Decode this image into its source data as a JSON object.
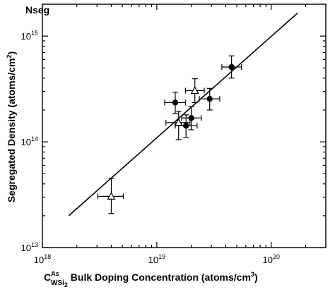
{
  "chart_data": {
    "type": "scatter",
    "title": "",
    "corner_label": "Nseg",
    "xlabel": {
      "symbol": "C",
      "sup": "As",
      "sub": "WSi",
      "sub_sub": "2",
      "text": " Bulk Doping Concentration (atoms/cm",
      "unit_exp": "3",
      "close": ")"
    },
    "ylabel": {
      "text": "Segregated Density (atoms/cm",
      "unit_exp": "2",
      "close": ")"
    },
    "xscale": "log",
    "yscale": "log",
    "xlim": [
      1e+18,
      3e+20
    ],
    "ylim": [
      10000000000000.0,
      2000000000000000.0
    ],
    "xticks": [
      {
        "base": "10",
        "exp": "18",
        "value": 1e+18
      },
      {
        "base": "10",
        "exp": "19",
        "value": 1e+19
      },
      {
        "base": "10",
        "exp": "20",
        "value": 1e+20
      }
    ],
    "yticks": [
      {
        "base": "10",
        "exp": "13",
        "value": 10000000000000.0
      },
      {
        "base": "10",
        "exp": "14",
        "value": 100000000000000.0
      },
      {
        "base": "10",
        "exp": "15",
        "value": 1000000000000000.0
      }
    ],
    "grid": false,
    "legend": "none",
    "fit_line": {
      "x": [
        1.7e+18,
        1.7e+20
      ],
      "y": [
        20000000000000.0,
        1650000000000000.0
      ]
    },
    "series": [
      {
        "marker": "filled-circle",
        "points": [
          {
            "x": 1.45e+19,
            "y": 235000000000000.0,
            "xerr": [
              1.17e+19,
              1.78e+19
            ],
            "yerr": [
              185000000000000.0,
              295000000000000.0
            ]
          },
          {
            "x": 2e+19,
            "y": 168000000000000.0,
            "xerr": [
              1.65e+19,
              2.45e+19
            ],
            "yerr": [
              130000000000000.0,
              215000000000000.0
            ]
          },
          {
            "x": 1.8e+19,
            "y": 142000000000000.0,
            "xerr": [
              1.45e+19,
              2.25e+19
            ],
            "yerr": [
              110000000000000.0,
              180000000000000.0
            ]
          },
          {
            "x": 2.9e+19,
            "y": 255000000000000.0,
            "xerr": [
              2.35e+19,
              3.55e+19
            ],
            "yerr": [
              200000000000000.0,
              320000000000000.0
            ]
          },
          {
            "x": 4.5e+19,
            "y": 510000000000000.0,
            "xerr": [
              3.7e+19,
              5.5e+19
            ],
            "yerr": [
              400000000000000.0,
              650000000000000.0
            ]
          }
        ]
      },
      {
        "marker": "open-triangle",
        "points": [
          {
            "x": 4e+18,
            "y": 30500000000000.0,
            "xerr": [
              3.05e+18,
              5.1e+18
            ],
            "yerr": [
              21000000000000.0,
              45000000000000.0
            ]
          },
          {
            "x": 1.55e+19,
            "y": 152000000000000.0,
            "xerr": [
              1.2e+19,
              1.95e+19
            ],
            "yerr": [
              105000000000000.0,
              195000000000000.0
            ]
          },
          {
            "x": 2.15e+19,
            "y": 305000000000000.0,
            "xerr": [
              1.78e+19,
              2.6e+19
            ],
            "yerr": [
              235000000000000.0,
              395000000000000.0
            ]
          }
        ]
      }
    ]
  }
}
